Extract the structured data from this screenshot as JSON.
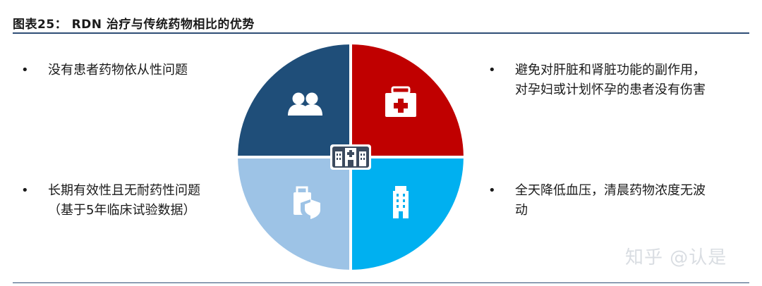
{
  "figure": {
    "title": "图表25：  RDN 治疗与传统药物相比的优势"
  },
  "points": [
    {
      "id": "p1",
      "bullet": "•",
      "lines": [
        "没有患者药物依从性问题"
      ]
    },
    {
      "id": "p2",
      "bullet": "•",
      "lines": [
        "避免对肝脏和肾脏功能的副作用，",
        "对孕妇或计划怀孕的患者没有伤害"
      ]
    },
    {
      "id": "p3",
      "bullet": "•",
      "lines": [
        "长期有效性且无耐药性问题",
        "（基于5年临床试验数据）"
      ]
    },
    {
      "id": "p4",
      "bullet": "•",
      "lines": [
        "全天降低血压，清晨药物浓度无波",
        "动"
      ]
    }
  ],
  "quadrants": [
    {
      "name": "top-left",
      "color": "#1f4e79",
      "icon": "people-icon"
    },
    {
      "name": "top-right",
      "color": "#c00000",
      "icon": "first-aid-kit-icon"
    },
    {
      "name": "bottom-left",
      "color": "#9dc3e6",
      "icon": "shield-bag-icon"
    },
    {
      "name": "bottom-right",
      "color": "#00b0f0",
      "icon": "building-icon"
    }
  ],
  "center_icon": "hospital-icon",
  "watermark": "知乎 @认是"
}
